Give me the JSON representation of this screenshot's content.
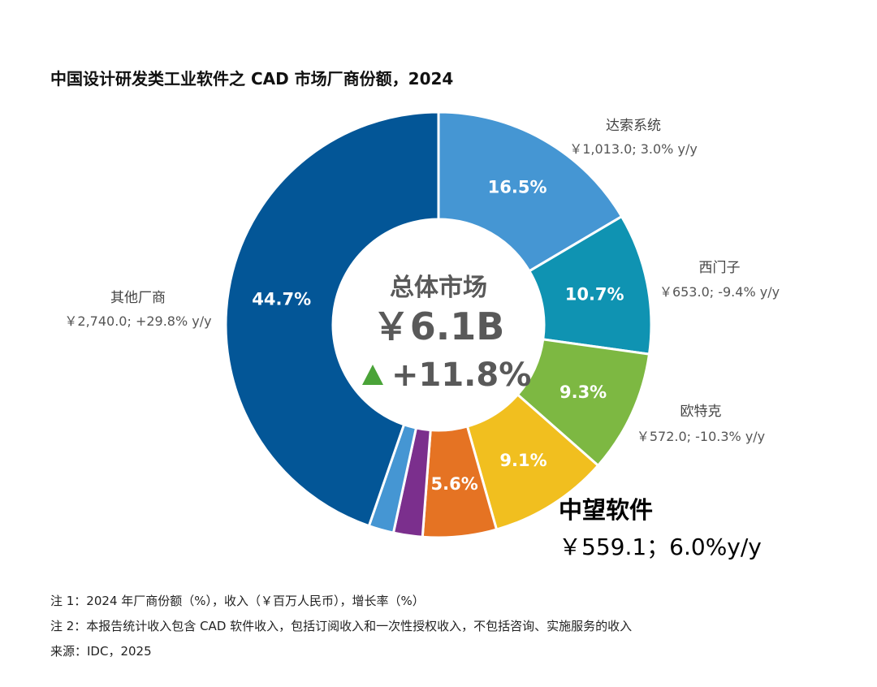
{
  "chart_data": {
    "type": "pie",
    "title": "中国设计研发类工业软件之 CAD 市场厂商份额，2024",
    "center": {
      "label": "总体市场",
      "total": "￥6.1B",
      "growth": "+11.8%",
      "growth_direction": "up"
    },
    "slices": [
      {
        "name": "达索系统",
        "share": 16.5,
        "share_label": "16.5%",
        "detail": "￥1,013.0; 3.0% y/y",
        "color": "#4596d3"
      },
      {
        "name": "西门子",
        "share": 10.7,
        "share_label": "10.7%",
        "detail": "￥653.0; -9.4% y/y",
        "color": "#0f93b2"
      },
      {
        "name": "欧特克",
        "share": 9.3,
        "share_label": "9.3%",
        "detail": "￥572.0; -10.3% y/y",
        "color": "#7db842"
      },
      {
        "name": "中望软件",
        "share": 9.1,
        "share_label": "9.1%",
        "detail": "￥559.1；6.0%y/y",
        "color": "#f1bf1f",
        "highlight": true
      },
      {
        "name": "",
        "share": 5.6,
        "share_label": "5.6%",
        "detail": "",
        "color": "#e57323"
      },
      {
        "name": "",
        "share": 2.2,
        "share_label": "",
        "detail": "",
        "color": "#7b2f8d"
      },
      {
        "name": "",
        "share": 1.9,
        "share_label": "",
        "detail": "",
        "color": "#4596d3"
      },
      {
        "name": "其他厂商",
        "share": 44.7,
        "share_label": "44.7%",
        "detail": "￥2,740.0; +29.8% y/y",
        "color": "#035697"
      }
    ],
    "notes": [
      "注 1：2024 年厂商份额（%），收入（￥百万人民币），增长率（%）",
      "注 2：本报告统计收入包含 CAD 软件收入，包括订阅收入和一次性授权收入，不包括咨询、实施服务的收入",
      "来源：IDC，2025"
    ]
  },
  "colors": {
    "growth_arrow": "#4aa338",
    "center_text": "#595959"
  }
}
